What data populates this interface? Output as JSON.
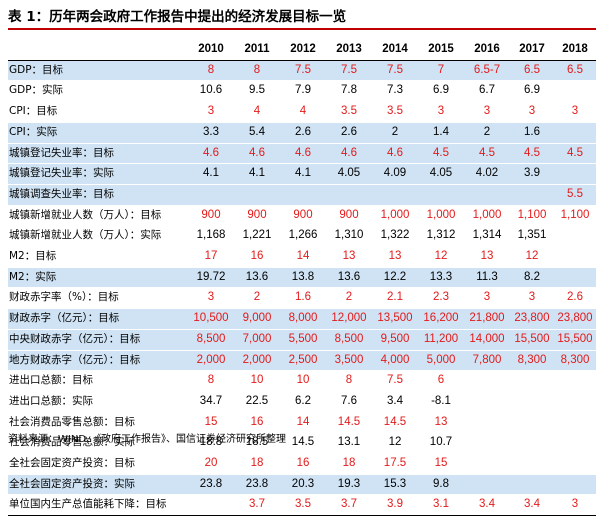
{
  "title": "表 1：历年两会政府工作报告中提出的经济发展目标一览",
  "years": [
    "2010",
    "2011",
    "2012",
    "2013",
    "2014",
    "2015",
    "2016",
    "2017",
    "2018"
  ],
  "rows": [
    {
      "label": "GDP：目标",
      "kind": "target",
      "shade": true,
      "values": [
        "8",
        "8",
        "7.5",
        "7.5",
        "7.5",
        "7",
        "6.5-7",
        "6.5",
        "6.5"
      ]
    },
    {
      "label": "GDP：实际",
      "kind": "actual",
      "shade": false,
      "values": [
        "10.6",
        "9.5",
        "7.9",
        "7.8",
        "7.3",
        "6.9",
        "6.7",
        "6.9",
        ""
      ]
    },
    {
      "label": "CPI：目标",
      "kind": "target",
      "shade": false,
      "values": [
        "3",
        "4",
        "4",
        "3.5",
        "3.5",
        "3",
        "3",
        "3",
        "3"
      ]
    },
    {
      "label": "CPI：实际",
      "kind": "actual",
      "shade": true,
      "values": [
        "3.3",
        "5.4",
        "2.6",
        "2.6",
        "2",
        "1.4",
        "2",
        "1.6",
        ""
      ]
    },
    {
      "label": "城镇登记失业率：目标",
      "kind": "target",
      "shade": true,
      "values": [
        "4.6",
        "4.6",
        "4.6",
        "4.6",
        "4.6",
        "4.5",
        "4.5",
        "4.5",
        "4.5"
      ]
    },
    {
      "label": "城镇登记失业率：实际",
      "kind": "actual",
      "shade": true,
      "values": [
        "4.1",
        "4.1",
        "4.1",
        "4.05",
        "4.09",
        "4.05",
        "4.02",
        "3.9",
        ""
      ]
    },
    {
      "label": "城镇调查失业率：目标",
      "kind": "target",
      "shade": true,
      "values": [
        "",
        "",
        "",
        "",
        "",
        "",
        "",
        "",
        "5.5"
      ]
    },
    {
      "label": "城镇新增就业人数（万人）：目标",
      "kind": "target",
      "shade": false,
      "values": [
        "900",
        "900",
        "900",
        "900",
        "1,000",
        "1,000",
        "1,000",
        "1,100",
        "1,100"
      ]
    },
    {
      "label": "城镇新增就业人数（万人）：实际",
      "kind": "actual",
      "shade": false,
      "values": [
        "1,168",
        "1,221",
        "1,266",
        "1,310",
        "1,322",
        "1,312",
        "1,314",
        "1,351",
        ""
      ]
    },
    {
      "label": "M2：目标",
      "kind": "target",
      "shade": false,
      "values": [
        "17",
        "16",
        "14",
        "13",
        "13",
        "12",
        "13",
        "12",
        ""
      ]
    },
    {
      "label": "M2：实际",
      "kind": "actual",
      "shade": true,
      "values": [
        "19.72",
        "13.6",
        "13.8",
        "13.6",
        "12.2",
        "13.3",
        "11.3",
        "8.2",
        ""
      ]
    },
    {
      "label": "财政赤字率（%）：目标",
      "kind": "target",
      "shade": false,
      "values": [
        "3",
        "2",
        "1.6",
        "2",
        "2.1",
        "2.3",
        "3",
        "3",
        "2.6"
      ]
    },
    {
      "label": "财政赤字（亿元）：目标",
      "kind": "target",
      "shade": true,
      "values": [
        "10,500",
        "9,000",
        "8,000",
        "12,000",
        "13,500",
        "16,200",
        "21,800",
        "23,800",
        "23,800"
      ]
    },
    {
      "label": "中央财政赤字（亿元）：目标",
      "kind": "target",
      "shade": true,
      "values": [
        "8,500",
        "7,000",
        "5,500",
        "8,500",
        "9,500",
        "11,200",
        "14,000",
        "15,500",
        "15,500"
      ]
    },
    {
      "label": "地方财政赤字（亿元）：目标",
      "kind": "target",
      "shade": true,
      "values": [
        "2,000",
        "2,000",
        "2,500",
        "3,500",
        "4,000",
        "5,000",
        "7,800",
        "8,300",
        "8,300"
      ]
    },
    {
      "label": "进出口总额：目标",
      "kind": "target",
      "shade": false,
      "values": [
        "8",
        "10",
        "10",
        "8",
        "7.5",
        "6",
        "",
        "",
        ""
      ]
    },
    {
      "label": "进出口总额：实际",
      "kind": "actual",
      "shade": false,
      "values": [
        "34.7",
        "22.5",
        "6.2",
        "7.6",
        "3.4",
        "-8.1",
        "",
        "",
        ""
      ]
    },
    {
      "label": "社会消费品零售总额：目标",
      "kind": "target",
      "shade": false,
      "values": [
        "15",
        "16",
        "14",
        "14.5",
        "14.5",
        "13",
        "",
        "",
        ""
      ]
    },
    {
      "label": "社会消费品零售总额：实际",
      "kind": "actual",
      "shade": false,
      "values": [
        "18.8",
        "18.5",
        "14.5",
        "13.1",
        "12",
        "10.7",
        "",
        "",
        ""
      ]
    },
    {
      "label": "全社会固定资产投资：目标",
      "kind": "target",
      "shade": false,
      "values": [
        "20",
        "18",
        "16",
        "18",
        "17.5",
        "15",
        "",
        "",
        ""
      ]
    },
    {
      "label": "全社会固定资产投资：实际",
      "kind": "actual",
      "shade": true,
      "values": [
        "23.8",
        "23.8",
        "20.3",
        "19.3",
        "15.3",
        "9.8",
        "",
        "",
        ""
      ]
    },
    {
      "label": "单位国内生产总值能耗下降：目标",
      "kind": "target",
      "shade": false,
      "values": [
        "",
        "3.7",
        "3.5",
        "3.7",
        "3.9",
        "3.1",
        "3.4",
        "3.4",
        "3"
      ]
    }
  ],
  "source": "资料来源：WIND、《政府工作报告》、国信证券经济研究所整理",
  "colors": {
    "accent_red": "#e31a1a",
    "rule_red": "#c00000",
    "row_shade": "#cfe3f4"
  }
}
